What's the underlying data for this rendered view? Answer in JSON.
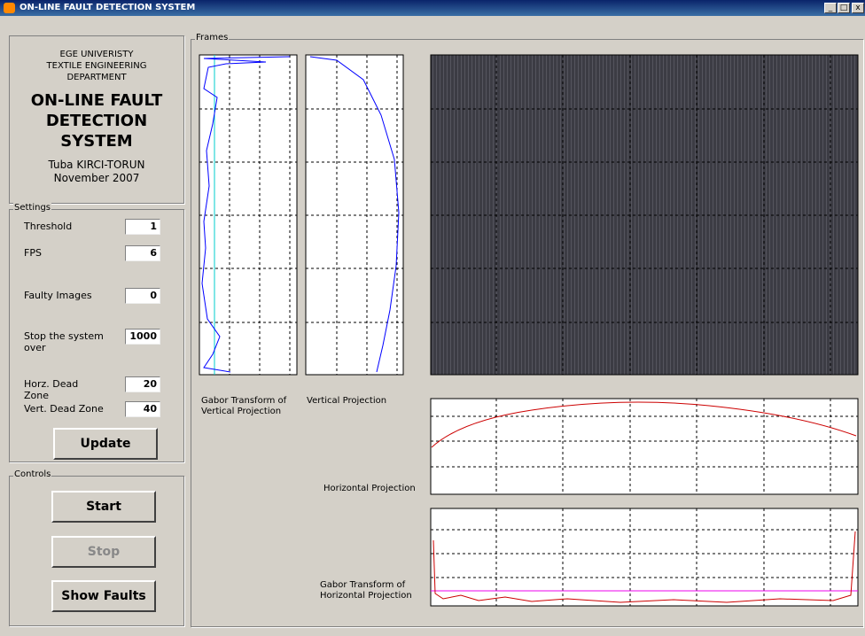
{
  "window": {
    "title": "ON-LINE FAULT DETECTION SYSTEM"
  },
  "info": {
    "institution": [
      "EGE UNIVERISTY",
      "TEXTILE ENGINEERING",
      "DEPARTMENT"
    ],
    "title": "ON-LINE FAULT DETECTION SYSTEM",
    "author": "Tuba KIRCI-TORUN",
    "date": "November 2007"
  },
  "settings": {
    "label": "Settings",
    "fields": [
      {
        "label": "Threshold",
        "value": 1
      },
      {
        "label": "FPS",
        "value": 6
      },
      {
        "label": "Faulty Images",
        "value": 0
      },
      {
        "label": "Stop the system over",
        "value": 1000
      },
      {
        "label": "Horz. Dead Zone",
        "value": 20
      },
      {
        "label": "Vert. Dead Zone",
        "value": 40
      }
    ],
    "button": "Update"
  },
  "controls": {
    "label": "Controls",
    "buttons": [
      "Start",
      "Stop",
      "Show Faults"
    ]
  },
  "frames": {
    "label": "Frames",
    "plots": [
      "Gabor Transform of Vertical Projection",
      "Vertical Projection",
      "Horizontal Projection",
      "Gabor Transform of Horizontal Projection"
    ]
  }
}
